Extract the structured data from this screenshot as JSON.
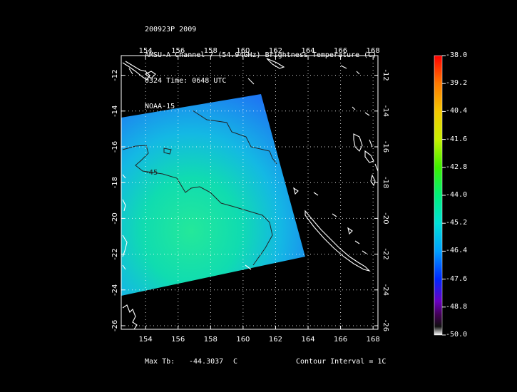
{
  "title_lines": [
    "200923P 2009",
    "AMSU-A Channel 7 (54.94GHz) Brightness Temperature (C)",
    "0324 Time: 0648 UTC",
    "NOAA-15"
  ],
  "map": {
    "lon_ticks": [
      "154",
      "156",
      "158",
      "160",
      "162",
      "164",
      "166",
      "168"
    ],
    "lat_ticks": [
      "-12",
      "-14",
      "-16",
      "-18",
      "-20",
      "-22",
      "-24",
      "-26"
    ],
    "lon_range": [
      152.5,
      168.3
    ],
    "lat_range": [
      -10.9,
      -26.2
    ],
    "grid": true,
    "contour_label": "-45"
  },
  "colorbar": {
    "labels": [
      "-38.0",
      "-39.2",
      "-40.4",
      "-41.6",
      "-42.8",
      "-44.0",
      "-45.2",
      "-46.4",
      "-47.6",
      "-48.8",
      "-50.0"
    ],
    "colors": [
      "#ff0000",
      "#ff7a00",
      "#f5c800",
      "#c8f000",
      "#3cf000",
      "#00f07a",
      "#00e0d8",
      "#00a0ff",
      "#0028ff",
      "#6a00c0",
      "#400050",
      "#101010",
      "#ffffff"
    ]
  },
  "footer": {
    "max_tb_label": "Max Tb:",
    "max_tb_value": "-44.3037",
    "max_tb_unit": "C",
    "contour_interval": "Contour Interval = 1C"
  }
}
